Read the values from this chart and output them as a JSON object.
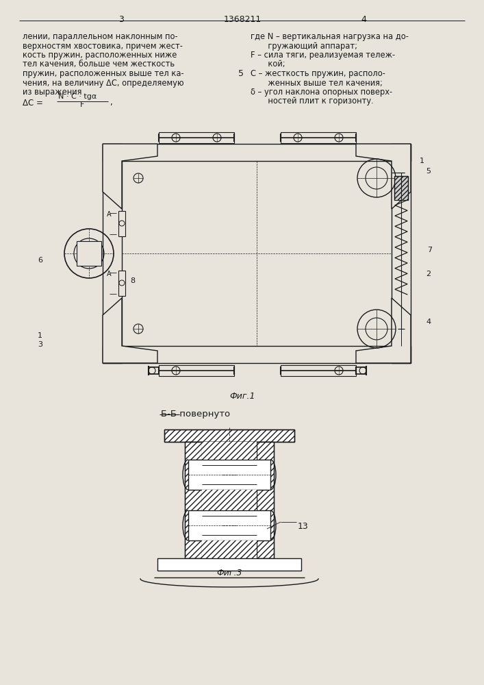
{
  "page_bg": "#e8e4dc",
  "line_color": "#1a1a1a",
  "text_color": "#1a1a1a",
  "page_number_left": "3",
  "page_number_center": "1368211",
  "page_number_right": "4",
  "left_text_lines": [
    "лении, параллельном наклонным по-",
    "верхностям хвостовика, причем жест-",
    "кость пружин, расположенных ниже",
    "тел качения, больше чем жесткость",
    "пружин, расположенных выше тел ка-",
    "чения, на величину ΔC, определяемую",
    "из выражения"
  ],
  "formula_prefix": "ΔC = ",
  "formula_numerator": "N · C · tgα",
  "formula_denominator": "F",
  "formula_suffix": ",",
  "line5_num": "5",
  "right_text_lines": [
    "где N – вертикальная нагрузка на до-",
    "       гружающий аппарат;",
    "F – сила тяги, реализуемая тележ-",
    "       кой;",
    "C – жесткость пружин, располо-",
    "       женных выше тел качения;",
    "δ – угол наклона опорных поверх-",
    "       ностей плит к горизонту."
  ],
  "fig1_label": "Фиг.1",
  "fig3_label": "Фиг.3",
  "section_label": "Б-Б повернуто",
  "label_13": "13"
}
